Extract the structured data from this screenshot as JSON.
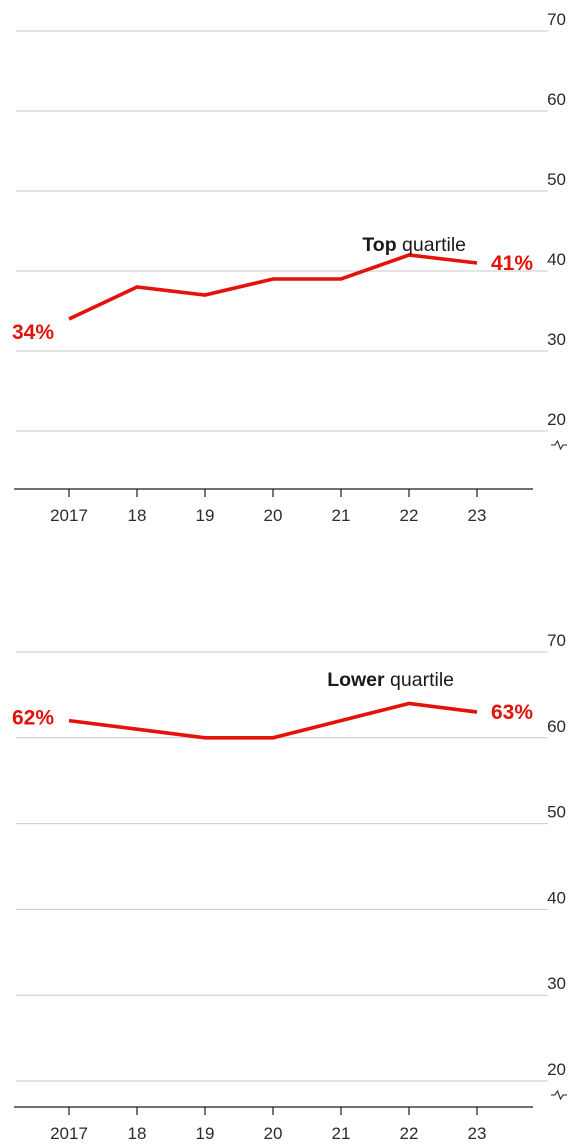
{
  "chart_data": [
    {
      "type": "line",
      "title_bold": "Top",
      "title_rest": " quartile",
      "categories": [
        "2017",
        "18",
        "19",
        "20",
        "21",
        "22",
        "23"
      ],
      "values": [
        34,
        38,
        37,
        39,
        39,
        42,
        41
      ],
      "ylim": [
        20,
        70
      ],
      "y_ticks": [
        "70",
        "60",
        "50",
        "40",
        "30",
        "20"
      ],
      "y_axis_break": true,
      "grid": true,
      "start_label": "34%",
      "end_label": "41%",
      "line_color": "#e3120b"
    },
    {
      "type": "line",
      "title_bold": "Lower",
      "title_rest": " quartile",
      "categories": [
        "2017",
        "18",
        "19",
        "20",
        "21",
        "22",
        "23"
      ],
      "values": [
        62,
        61,
        60,
        60,
        62,
        64,
        63
      ],
      "ylim": [
        20,
        70
      ],
      "y_ticks": [
        "70",
        "60",
        "50",
        "40",
        "30",
        "20"
      ],
      "y_axis_break": true,
      "grid": true,
      "start_label": "62%",
      "end_label": "63%",
      "line_color": "#e3120b"
    }
  ]
}
